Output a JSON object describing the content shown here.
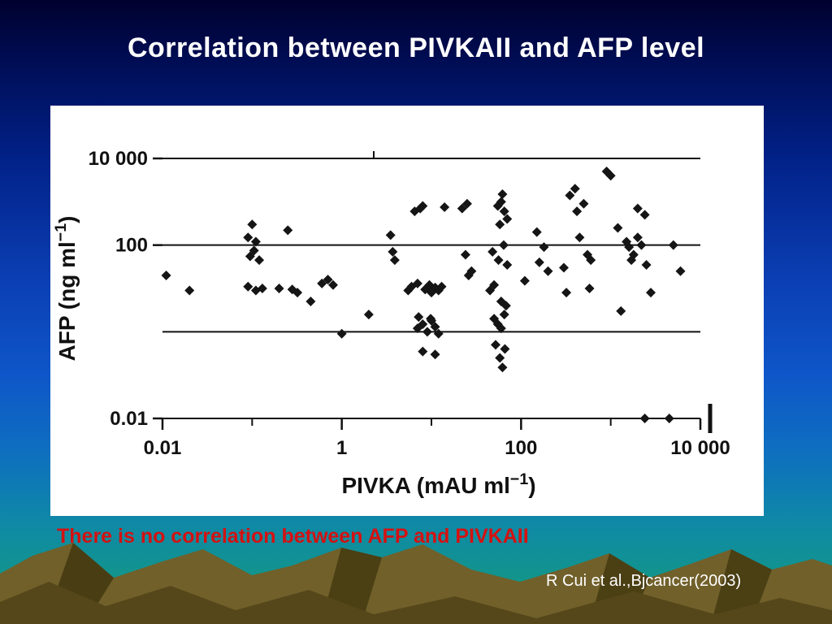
{
  "slide": {
    "title": "Correlation between PIVKAII and AFP level",
    "caption": "There is no correlation between AFP and PIVKAII",
    "citation": "R Cui et al.,Bjcancer(2003)"
  },
  "colors": {
    "title_text": "#ffffff",
    "caption_text": "#d41111",
    "citation_text": "#ffffff",
    "point_fill": "#151515",
    "axis_line": "#111111",
    "panel_background": "#ffffff",
    "mountain_main": "#71602a",
    "mountain_shadow": "#3c320c",
    "mountain_front": "#55471a"
  },
  "chart_data": {
    "type": "scatter",
    "title": "",
    "x_axis": {
      "title_main": "PIVKA (mAU ml",
      "title_sup": "−1",
      "title_end": ")",
      "scale": "log",
      "min": 0.01,
      "max": 10000,
      "tick_labels": [
        "0.01",
        "1",
        "100",
        "10 000"
      ],
      "tick_values": [
        0.01,
        1,
        100,
        10000
      ],
      "minor_tick_values": [
        0.1,
        10,
        1000
      ]
    },
    "y_axis": {
      "title_main": "AFP (ng ml",
      "title_sup": "−1",
      "title_end": ")",
      "scale": "log",
      "min": 0.01,
      "max": 10000,
      "tick_labels": [
        "10 000",
        "100",
        "0.01"
      ],
      "tick_values": [
        10000,
        100,
        0.01
      ],
      "gridline_values": [
        10000,
        100,
        1,
        0.01
      ]
    },
    "legend": "none",
    "points": [
      [
        0.011,
        20
      ],
      [
        0.02,
        9
      ],
      [
        0.09,
        150
      ],
      [
        0.1,
        300
      ],
      [
        0.11,
        120
      ],
      [
        0.095,
        55
      ],
      [
        0.105,
        75
      ],
      [
        0.12,
        45
      ],
      [
        0.09,
        11
      ],
      [
        0.11,
        9
      ],
      [
        0.13,
        10
      ],
      [
        0.2,
        10
      ],
      [
        0.25,
        220
      ],
      [
        0.28,
        9.5
      ],
      [
        0.32,
        8
      ],
      [
        0.45,
        5
      ],
      [
        0.6,
        13
      ],
      [
        0.7,
        16
      ],
      [
        0.8,
        12
      ],
      [
        1.0,
        0.9
      ],
      [
        2.0,
        2.5
      ],
      [
        3.5,
        170
      ],
      [
        3.7,
        70
      ],
      [
        3.9,
        45
      ],
      [
        5.5,
        9
      ],
      [
        6,
        11
      ],
      [
        6.5,
        600
      ],
      [
        7,
        13
      ],
      [
        7,
        1.2
      ],
      [
        7.2,
        2.2
      ],
      [
        7.5,
        700
      ],
      [
        8,
        800
      ],
      [
        8,
        1.5
      ],
      [
        8,
        0.35
      ],
      [
        8.5,
        9.5
      ],
      [
        9,
        10
      ],
      [
        9,
        1.0
      ],
      [
        9.5,
        12
      ],
      [
        9.8,
        2.0
      ],
      [
        10,
        8
      ],
      [
        10,
        1.8
      ],
      [
        11,
        10.5
      ],
      [
        11,
        1.3
      ],
      [
        11,
        0.3
      ],
      [
        12,
        9
      ],
      [
        12,
        0.9
      ],
      [
        13,
        11
      ],
      [
        14,
        750
      ],
      [
        22,
        700
      ],
      [
        24,
        60
      ],
      [
        25,
        900
      ],
      [
        26,
        20
      ],
      [
        28,
        25
      ],
      [
        45,
        9
      ],
      [
        48,
        70
      ],
      [
        50,
        12
      ],
      [
        50,
        2
      ],
      [
        52,
        0.5
      ],
      [
        55,
        800
      ],
      [
        55,
        1.5
      ],
      [
        56,
        45
      ],
      [
        58,
        300
      ],
      [
        58,
        0.25
      ],
      [
        60,
        1000
      ],
      [
        60,
        1.2
      ],
      [
        60,
        5
      ],
      [
        62,
        1500
      ],
      [
        62,
        0.15
      ],
      [
        64,
        100
      ],
      [
        65,
        600
      ],
      [
        65,
        2.5
      ],
      [
        66,
        0.4
      ],
      [
        68,
        4
      ],
      [
        70,
        400
      ],
      [
        70,
        35
      ],
      [
        110,
        15
      ],
      [
        150,
        200
      ],
      [
        160,
        40
      ],
      [
        180,
        90
      ],
      [
        200,
        25
      ],
      [
        300,
        30
      ],
      [
        320,
        8
      ],
      [
        350,
        1400
      ],
      [
        400,
        2000
      ],
      [
        420,
        600
      ],
      [
        450,
        150
      ],
      [
        500,
        900
      ],
      [
        550,
        60
      ],
      [
        580,
        10
      ],
      [
        600,
        45
      ],
      [
        900,
        5000
      ],
      [
        1000,
        4000
      ],
      [
        1200,
        250
      ],
      [
        1300,
        3
      ],
      [
        1500,
        120
      ],
      [
        1600,
        90
      ],
      [
        1700,
        45
      ],
      [
        1800,
        60
      ],
      [
        2000,
        150
      ],
      [
        2000,
        700
      ],
      [
        2200,
        100
      ],
      [
        2400,
        500
      ],
      [
        2500,
        35
      ],
      [
        2800,
        8
      ],
      [
        2400,
        0.01
      ],
      [
        4500,
        0.01
      ],
      [
        5000,
        100
      ],
      [
        6000,
        25
      ]
    ]
  }
}
